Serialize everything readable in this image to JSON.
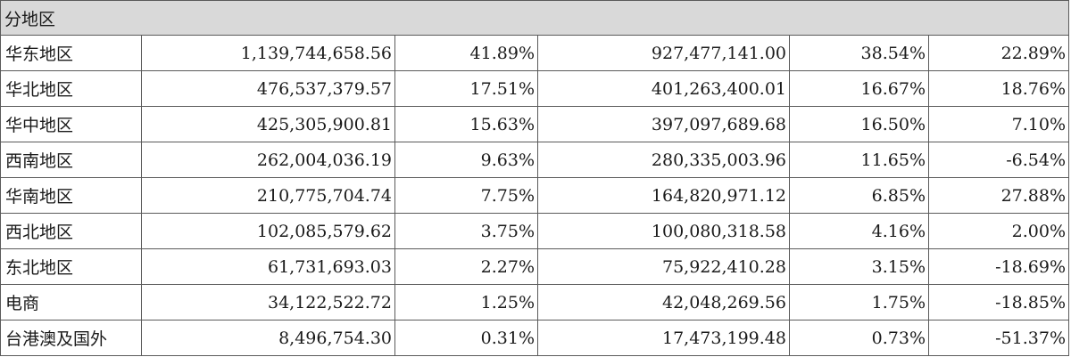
{
  "table": {
    "header": "分地区",
    "rows": [
      {
        "region": "华东地区",
        "amount_current": "1,139,744,658.56",
        "pct_current": "41.89%",
        "amount_prior": "927,477,141.00",
        "pct_prior": "38.54%",
        "change": "22.89%"
      },
      {
        "region": "华北地区",
        "amount_current": "476,537,379.57",
        "pct_current": "17.51%",
        "amount_prior": "401,263,400.01",
        "pct_prior": "16.67%",
        "change": "18.76%"
      },
      {
        "region": "华中地区",
        "amount_current": "425,305,900.81",
        "pct_current": "15.63%",
        "amount_prior": "397,097,689.68",
        "pct_prior": "16.50%",
        "change": "7.10%"
      },
      {
        "region": "西南地区",
        "amount_current": "262,004,036.19",
        "pct_current": "9.63%",
        "amount_prior": "280,335,003.96",
        "pct_prior": "11.65%",
        "change": "-6.54%"
      },
      {
        "region": "华南地区",
        "amount_current": "210,775,704.74",
        "pct_current": "7.75%",
        "amount_prior": "164,820,971.12",
        "pct_prior": "6.85%",
        "change": "27.88%"
      },
      {
        "region": "西北地区",
        "amount_current": "102,085,579.62",
        "pct_current": "3.75%",
        "amount_prior": "100,080,318.58",
        "pct_prior": "4.16%",
        "change": "2.00%"
      },
      {
        "region": "东北地区",
        "amount_current": "61,731,693.03",
        "pct_current": "2.27%",
        "amount_prior": "75,922,410.28",
        "pct_prior": "3.15%",
        "change": "-18.69%"
      },
      {
        "region": "电商",
        "amount_current": "34,122,522.72",
        "pct_current": "1.25%",
        "amount_prior": "42,048,269.56",
        "pct_prior": "1.75%",
        "change": "-18.85%"
      },
      {
        "region": "台港澳及国外",
        "amount_current": "8,496,754.30",
        "pct_current": "0.31%",
        "amount_prior": "17,473,199.48",
        "pct_prior": "0.73%",
        "change": "-51.37%"
      }
    ]
  }
}
